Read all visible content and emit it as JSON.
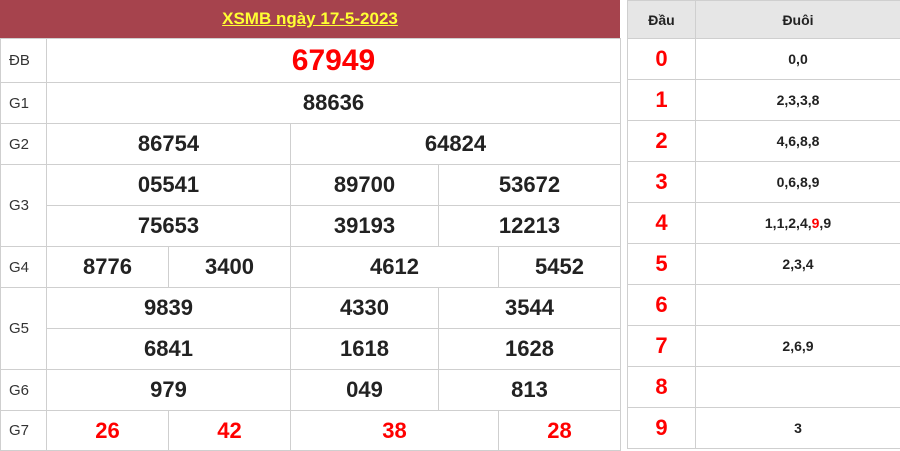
{
  "title": "XSMB ngày 17-5-2023",
  "colors": {
    "header_bg": "#a6434d",
    "title_text": "#ffff33",
    "accent_red": "#ff0000"
  },
  "prizes": [
    {
      "label": "ĐB",
      "numbers": [
        "67949"
      ]
    },
    {
      "label": "G1",
      "numbers": [
        "88636"
      ]
    },
    {
      "label": "G2",
      "numbers": [
        "86754",
        "64824"
      ]
    },
    {
      "label": "G3",
      "numbers": [
        "05541",
        "89700",
        "53672",
        "75653",
        "39193",
        "12213"
      ]
    },
    {
      "label": "G4",
      "numbers": [
        "8776",
        "3400",
        "4612",
        "5452"
      ]
    },
    {
      "label": "G5",
      "numbers": [
        "9839",
        "4330",
        "3544",
        "6841",
        "1618",
        "1628"
      ]
    },
    {
      "label": "G6",
      "numbers": [
        "979",
        "049",
        "813"
      ]
    },
    {
      "label": "G7",
      "numbers": [
        "26",
        "42",
        "38",
        "28"
      ]
    }
  ],
  "loto": {
    "head_label": "Đầu",
    "tail_label": "Đuôi",
    "rows": [
      {
        "head": "0",
        "tails": [
          "0",
          "0"
        ]
      },
      {
        "head": "1",
        "tails": [
          "2",
          "3",
          "3",
          "8"
        ]
      },
      {
        "head": "2",
        "tails": [
          "4",
          "6",
          "8",
          "8"
        ]
      },
      {
        "head": "3",
        "tails": [
          "0",
          "6",
          "8",
          "9"
        ]
      },
      {
        "head": "4",
        "tails": [
          "1",
          "1",
          "2",
          "4",
          "9",
          "9"
        ],
        "highlight_index": 4
      },
      {
        "head": "5",
        "tails": [
          "2",
          "3",
          "4"
        ]
      },
      {
        "head": "6",
        "tails": []
      },
      {
        "head": "7",
        "tails": [
          "2",
          "6",
          "9"
        ]
      },
      {
        "head": "8",
        "tails": []
      },
      {
        "head": "9",
        "tails": [
          "3"
        ]
      }
    ]
  }
}
